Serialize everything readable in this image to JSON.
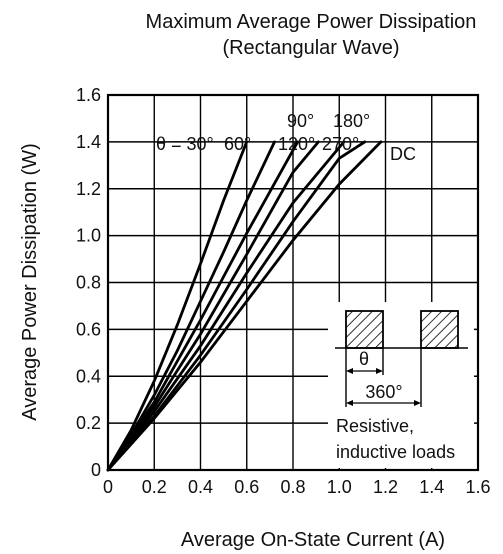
{
  "chart_data": {
    "type": "line",
    "title": "Maximum Average Power Dissipation",
    "subtitle": "(Rectangular Wave)",
    "xlabel": "Average On-State Current  (A)",
    "ylabel": "Average Power Dissipation  (W)",
    "xlim": [
      0,
      1.6
    ],
    "ylim": [
      0,
      1.6
    ],
    "x_ticks": [
      "0",
      "0.2",
      "0.4",
      "0.6",
      "0.8",
      "1.0",
      "1.2",
      "1.4",
      "1.6"
    ],
    "y_ticks": [
      "0",
      "0.2",
      "0.4",
      "0.6",
      "0.8",
      "1.0",
      "1.2",
      "1.4",
      "1.6"
    ],
    "x_tick_values": [
      0,
      0.2,
      0.4,
      0.6,
      0.8,
      1.0,
      1.2,
      1.4,
      1.6
    ],
    "y_tick_values": [
      0,
      0.2,
      0.4,
      0.6,
      0.8,
      1.0,
      1.2,
      1.4,
      1.6
    ],
    "grid": true,
    "series": [
      {
        "name": "θ = 30°",
        "x": [
          0,
          0.1,
          0.2,
          0.3,
          0.4,
          0.5,
          0.6
        ],
        "y": [
          0,
          0.17,
          0.38,
          0.62,
          0.88,
          1.15,
          1.4
        ]
      },
      {
        "name": "60°",
        "x": [
          0,
          0.1,
          0.2,
          0.3,
          0.4,
          0.5,
          0.6,
          0.72
        ],
        "y": [
          0,
          0.15,
          0.32,
          0.51,
          0.72,
          0.93,
          1.15,
          1.4
        ]
      },
      {
        "name": "90°",
        "x": [
          0,
          0.2,
          0.4,
          0.6,
          0.82
        ],
        "y": [
          0,
          0.29,
          0.64,
          1.01,
          1.4
        ]
      },
      {
        "name": "120°",
        "x": [
          0,
          0.2,
          0.4,
          0.6,
          0.8,
          0.91
        ],
        "y": [
          0,
          0.27,
          0.58,
          0.92,
          1.27,
          1.4
        ]
      },
      {
        "name": "180°",
        "x": [
          0,
          0.2,
          0.4,
          0.6,
          0.8,
          1.02
        ],
        "y": [
          0,
          0.25,
          0.53,
          0.84,
          1.14,
          1.4
        ]
      },
      {
        "name": "270°",
        "x": [
          0,
          0.2,
          0.4,
          0.6,
          0.8,
          1.0,
          1.11
        ],
        "y": [
          0,
          0.23,
          0.49,
          0.77,
          1.06,
          1.33,
          1.4
        ]
      },
      {
        "name": "DC",
        "x": [
          0,
          0.2,
          0.4,
          0.6,
          0.8,
          1.0,
          1.18
        ],
        "y": [
          0,
          0.22,
          0.46,
          0.72,
          0.98,
          1.22,
          1.4
        ]
      }
    ],
    "curve_labels": [
      {
        "text": "θ = 30°",
        "row": "lower"
      },
      {
        "text": "60°",
        "row": "lower"
      },
      {
        "text": "120°",
        "row": "lower"
      },
      {
        "text": "270°",
        "row": "lower"
      },
      {
        "text": "90°",
        "row": "upper"
      },
      {
        "text": "180°",
        "row": "upper"
      },
      {
        "text": "DC",
        "row": "right"
      }
    ],
    "inset": {
      "theta_label": "θ",
      "period_label": "360°",
      "note_line1": "Resistive,",
      "note_line2": "inductive loads"
    }
  }
}
